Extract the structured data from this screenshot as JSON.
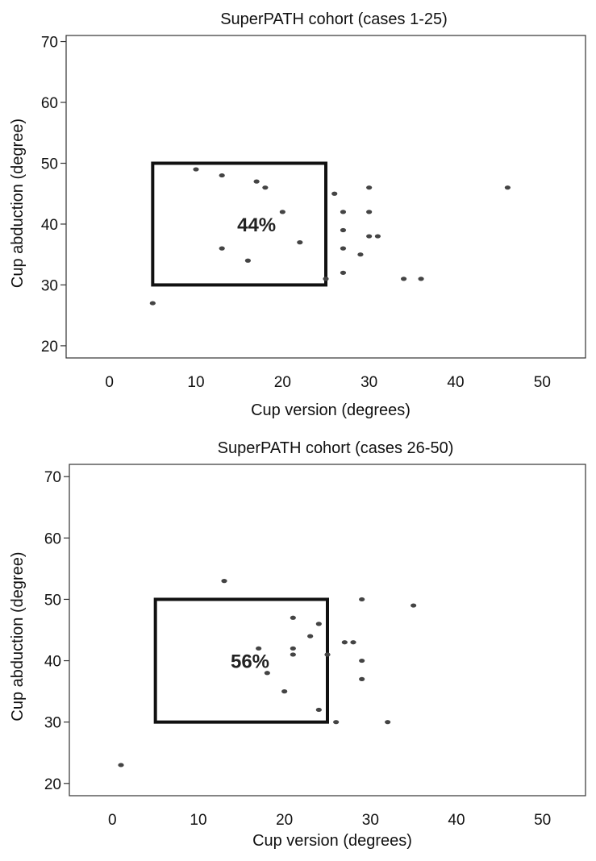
{
  "chart_data": [
    {
      "type": "scatter",
      "title": "SuperPATH cohort (cases 1-25)",
      "xlabel": "Cup version (degrees)",
      "ylabel": "Cup abduction (degree)",
      "xlim": [
        -5,
        55
      ],
      "ylim": [
        18,
        71
      ],
      "xticks": [
        0,
        10,
        20,
        30,
        40,
        50
      ],
      "yticks": [
        20,
        30,
        40,
        50,
        60,
        70
      ],
      "grid": false,
      "target_zone": {
        "x": [
          5,
          25
        ],
        "y": [
          30,
          50
        ],
        "label": "44%",
        "label_at": [
          17,
          40
        ]
      },
      "points": [
        [
          10,
          49
        ],
        [
          13,
          48
        ],
        [
          17,
          47
        ],
        [
          18,
          46
        ],
        [
          20,
          42
        ],
        [
          13,
          36
        ],
        [
          16,
          34
        ],
        [
          22,
          37
        ],
        [
          26,
          45
        ],
        [
          27,
          42
        ],
        [
          27,
          39
        ],
        [
          27,
          36
        ],
        [
          27,
          32
        ],
        [
          29,
          35
        ],
        [
          30,
          46
        ],
        [
          30,
          42
        ],
        [
          30,
          38
        ],
        [
          31,
          38
        ],
        [
          34,
          31
        ],
        [
          36,
          31
        ],
        [
          46,
          46
        ],
        [
          5,
          27
        ],
        [
          25,
          31
        ]
      ]
    },
    {
      "type": "scatter",
      "title": "SuperPATH cohort (cases 26-50)",
      "xlabel": "Cup version (degrees)",
      "ylabel": "Cup abduction (degree)",
      "xlim": [
        -5,
        55
      ],
      "ylim": [
        18,
        72
      ],
      "xticks": [
        0,
        10,
        20,
        30,
        40,
        50
      ],
      "yticks": [
        20,
        30,
        40,
        50,
        60,
        70
      ],
      "grid": false,
      "target_zone": {
        "x": [
          5,
          25
        ],
        "y": [
          30,
          50
        ],
        "label": "56%",
        "label_at": [
          16,
          40
        ]
      },
      "points": [
        [
          13,
          53
        ],
        [
          21,
          47
        ],
        [
          24,
          46
        ],
        [
          23,
          44
        ],
        [
          17,
          42
        ],
        [
          21,
          42
        ],
        [
          21,
          41
        ],
        [
          18,
          38
        ],
        [
          20,
          35
        ],
        [
          24,
          32
        ],
        [
          27,
          43
        ],
        [
          28,
          43
        ],
        [
          29,
          50
        ],
        [
          29,
          40
        ],
        [
          29,
          37
        ],
        [
          26,
          30
        ],
        [
          32,
          30
        ],
        [
          35,
          49
        ],
        [
          1,
          23
        ],
        [
          25,
          41
        ]
      ]
    }
  ]
}
